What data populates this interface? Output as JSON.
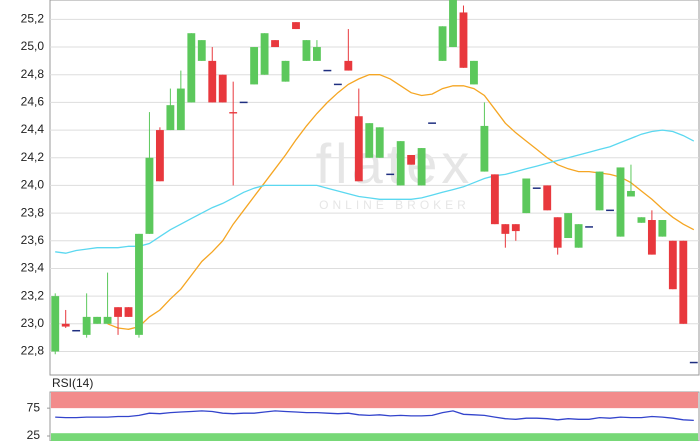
{
  "chart_data": [
    {
      "type": "candlestick",
      "watermark": "flatex",
      "watermark_subtitle": "ONLINE BROKER",
      "open": [
        22.8,
        23.0,
        22.95,
        22.92,
        23.0,
        23.0,
        23.12,
        23.12,
        22.92,
        23.65,
        24.4,
        24.4,
        24.4,
        24.6,
        24.9,
        24.9,
        24.8,
        24.53,
        24.6,
        24.73,
        24.8,
        25.05,
        24.75,
        25.18,
        24.9,
        24.9,
        24.83,
        24.73,
        24.9,
        24.5,
        24.2,
        24.2,
        24.08,
        24.0,
        24.22,
        24.0,
        24.45,
        24.9,
        25.0,
        25.25,
        24.73,
        24.1,
        24.08,
        23.72,
        23.72,
        23.8,
        23.98,
        24.0,
        23.77,
        23.62,
        23.55,
        23.7,
        23.82,
        23.82,
        23.63,
        23.92,
        23.73,
        23.75,
        23.63,
        23.6,
        23.6,
        22.72
      ],
      "high": [
        23.22,
        23.1,
        22.95,
        23.22,
        23.05,
        23.37,
        23.12,
        23.12,
        23.65,
        24.53,
        24.42,
        24.7,
        24.83,
        25.1,
        25.05,
        25.0,
        24.8,
        24.75,
        24.6,
        25.0,
        25.1,
        25.05,
        24.9,
        25.18,
        25.05,
        25.05,
        24.83,
        24.73,
        25.13,
        24.7,
        24.45,
        24.42,
        24.08,
        24.32,
        24.22,
        24.27,
        24.45,
        25.15,
        25.35,
        25.3,
        24.9,
        24.6,
        24.08,
        23.72,
        23.72,
        24.05,
        23.98,
        24.0,
        23.77,
        23.8,
        23.72,
        23.7,
        24.1,
        23.82,
        24.13,
        24.15,
        23.77,
        23.82,
        23.75,
        23.6,
        23.6,
        22.72
      ],
      "low": [
        22.78,
        22.97,
        22.95,
        22.9,
        23.0,
        23.0,
        22.92,
        23.05,
        22.9,
        23.65,
        24.03,
        24.4,
        24.4,
        24.6,
        24.9,
        24.6,
        24.6,
        24.0,
        24.6,
        24.73,
        24.8,
        25.0,
        24.75,
        25.13,
        24.9,
        24.9,
        24.83,
        24.73,
        24.83,
        24.03,
        24.2,
        24.2,
        24.08,
        24.0,
        24.15,
        24.0,
        24.45,
        24.9,
        25.0,
        24.85,
        24.73,
        24.1,
        23.72,
        23.55,
        23.6,
        23.8,
        23.98,
        23.82,
        23.5,
        23.62,
        23.55,
        23.7,
        23.82,
        23.82,
        23.63,
        23.92,
        23.73,
        23.5,
        23.63,
        23.25,
        23.0,
        22.72
      ],
      "close": [
        23.2,
        22.98,
        22.95,
        23.05,
        23.05,
        23.05,
        23.05,
        23.05,
        23.65,
        24.2,
        24.03,
        24.58,
        24.7,
        25.1,
        25.05,
        24.6,
        24.6,
        24.52,
        24.6,
        25.0,
        25.1,
        25.0,
        24.9,
        25.13,
        25.05,
        25.0,
        24.83,
        24.73,
        24.83,
        24.03,
        24.45,
        24.42,
        24.08,
        24.32,
        24.15,
        24.27,
        24.45,
        25.15,
        25.35,
        24.85,
        24.9,
        24.43,
        23.72,
        23.65,
        23.67,
        24.05,
        23.98,
        23.82,
        23.55,
        23.8,
        23.72,
        23.7,
        24.1,
        23.82,
        24.13,
        23.96,
        23.77,
        23.5,
        23.75,
        23.25,
        23.0,
        22.72
      ],
      "up_color": "#5cc85c",
      "down_color": "#e8383d",
      "doji_color": "#1f2f80",
      "overlays": [
        {
          "color": "#f5a623",
          "values": [
            null,
            null,
            null,
            null,
            null,
            23.0,
            22.97,
            22.96,
            22.98,
            23.05,
            23.1,
            23.18,
            23.25,
            23.35,
            23.45,
            23.52,
            23.6,
            23.72,
            23.82,
            23.92,
            24.02,
            24.12,
            24.22,
            24.33,
            24.43,
            24.52,
            24.6,
            24.67,
            24.73,
            24.77,
            24.8,
            24.8,
            24.77,
            24.72,
            24.67,
            24.65,
            24.66,
            24.7,
            24.72,
            24.72,
            24.7,
            24.65,
            24.55,
            24.45,
            24.38,
            24.32,
            24.26,
            24.2,
            24.15,
            24.12,
            24.1,
            24.1,
            24.09,
            24.08,
            24.06,
            24.02,
            23.96,
            23.9,
            23.83,
            23.77,
            23.72,
            23.68
          ]
        },
        {
          "color": "#5bd8f0",
          "values": [
            23.52,
            23.51,
            23.53,
            23.54,
            23.55,
            23.55,
            23.55,
            23.56,
            23.56,
            23.58,
            23.63,
            23.68,
            23.72,
            23.76,
            23.8,
            23.84,
            23.87,
            23.91,
            23.95,
            23.98,
            24.0,
            24.0,
            24.0,
            24.0,
            24.0,
            24.0,
            23.98,
            23.96,
            23.94,
            23.92,
            23.91,
            23.9,
            23.9,
            23.9,
            23.9,
            23.91,
            23.93,
            23.95,
            23.97,
            23.99,
            24.02,
            24.05,
            24.07,
            24.08,
            24.1,
            24.12,
            24.14,
            24.16,
            24.18,
            24.2,
            24.22,
            24.24,
            24.26,
            24.28,
            24.31,
            24.34,
            24.37,
            24.39,
            24.4,
            24.39,
            24.36,
            24.32
          ]
        }
      ],
      "ylim": [
        22.63,
        25.34
      ],
      "yticks": [
        {
          "value": 22.8,
          "label": "22,8"
        },
        {
          "value": 23.0,
          "label": "23,0"
        },
        {
          "value": 23.2,
          "label": "23,2"
        },
        {
          "value": 23.4,
          "label": "23,4"
        },
        {
          "value": 23.6,
          "label": "23,6"
        },
        {
          "value": 23.8,
          "label": "23,8"
        },
        {
          "value": 24.0,
          "label": "24,0"
        },
        {
          "value": 24.2,
          "label": "24,2"
        },
        {
          "value": 24.4,
          "label": "24,4"
        },
        {
          "value": 24.6,
          "label": "24,6"
        },
        {
          "value": 24.8,
          "label": "24,8"
        },
        {
          "value": 25.0,
          "label": "25,0"
        },
        {
          "value": 25.2,
          "label": "25,2"
        }
      ],
      "grid": true
    },
    {
      "type": "line",
      "title": "RSI(14)",
      "color": "#3344cc",
      "values": [
        59,
        58,
        58,
        59,
        59,
        59,
        60,
        60,
        62,
        66,
        65,
        67,
        68,
        69,
        70,
        69,
        66,
        65,
        66,
        66,
        68,
        70,
        69,
        68,
        67,
        67,
        66,
        65,
        66,
        63,
        62,
        63,
        61,
        62,
        61,
        61,
        62,
        67,
        70,
        64,
        63,
        62,
        59,
        56,
        55,
        57,
        57,
        56,
        54,
        56,
        55,
        55,
        58,
        57,
        59,
        58,
        58,
        60,
        59,
        57,
        54,
        53
      ],
      "bands": [
        {
          "from": 75,
          "to": 104,
          "color": "#f28b8b"
        },
        {
          "from": 16,
          "to": 30,
          "color": "#77d877"
        }
      ],
      "ylim": [
        16,
        104
      ],
      "yticks": [
        25,
        75
      ]
    }
  ]
}
